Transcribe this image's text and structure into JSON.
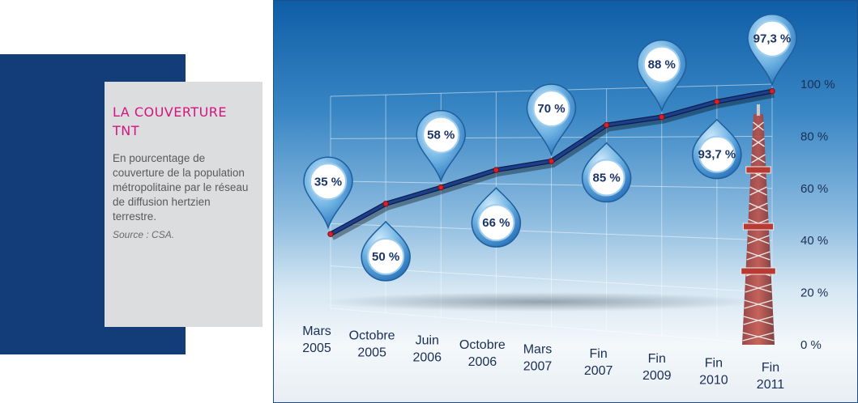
{
  "info": {
    "title_line1": "LA COUVERTURE",
    "title_line2": "TNT",
    "description": "En pourcentage de couverture de la population métropolitaine par le réseau de diffusion hertzien terrestre.",
    "source": "Source : CSA."
  },
  "colors": {
    "accent_pink": "#d4147f",
    "navy": "#123d78",
    "line": "#1b3f8c",
    "point": "#d8202a",
    "balloon": "#5fa8dc"
  },
  "chart_data": {
    "type": "line",
    "title": "",
    "xlabel": "",
    "ylabel": "",
    "ylim": [
      0,
      100
    ],
    "grid": true,
    "categories": [
      [
        "Mars",
        "2005"
      ],
      [
        "Octobre",
        "2005"
      ],
      [
        "Juin",
        "2006"
      ],
      [
        "Octobre",
        "2006"
      ],
      [
        "Mars",
        "2007"
      ],
      [
        "Fin",
        "2007"
      ],
      [
        "Fin",
        "2009"
      ],
      [
        "Fin",
        "2010"
      ],
      [
        "Fin",
        "2011"
      ]
    ],
    "series": [
      {
        "values": [
          35,
          50,
          58,
          66,
          70,
          85,
          88,
          93.7,
          97.3
        ]
      }
    ],
    "data_labels": [
      "35 %",
      "50 %",
      "58 %",
      "66 %",
      "70 %",
      "85 %",
      "88 %",
      "93,7 %",
      "97,3 %"
    ],
    "y_ticks": [
      "0 %",
      "20 %",
      "40 %",
      "60 %",
      "80 %",
      "100 %"
    ]
  }
}
